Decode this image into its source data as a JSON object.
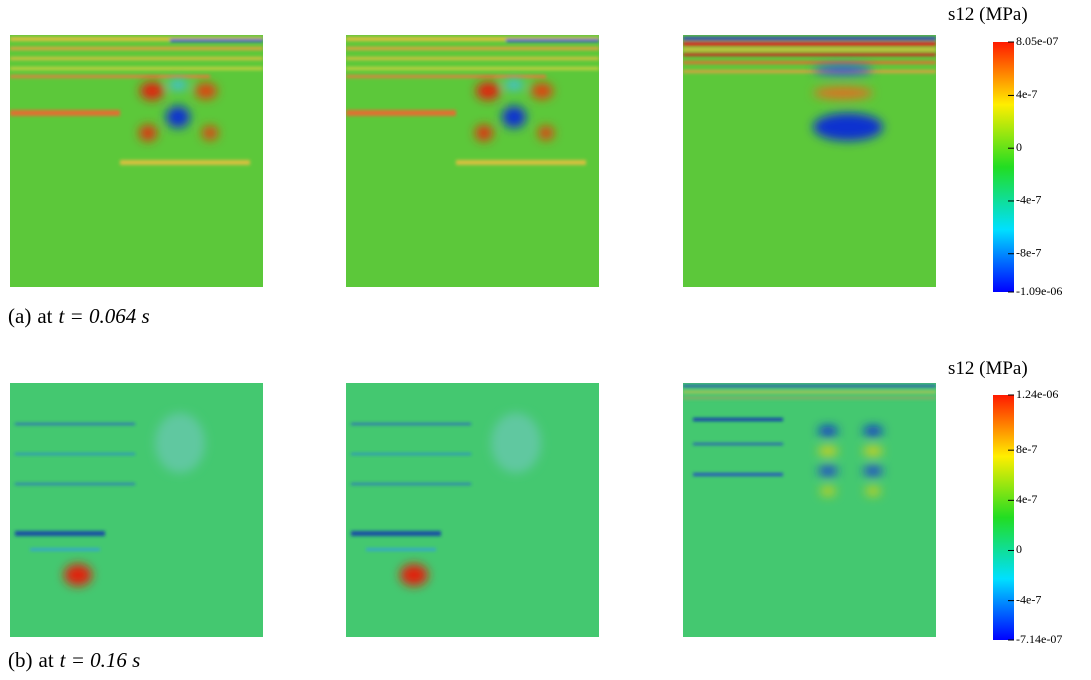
{
  "figure": {
    "panels": [
      {
        "caption": {
          "label": "(a)",
          "text": "at",
          "math": "t = 0.064 s"
        },
        "colorbar": {
          "title": "s12 (MPa)",
          "ticks": [
            {
              "value": 8.05e-07,
              "label": "8.05e-07"
            },
            {
              "value": 4e-07,
              "label": "4e-7"
            },
            {
              "value": 0,
              "label": "0"
            },
            {
              "value": -4e-07,
              "label": "-4e-7"
            },
            {
              "value": -8e-07,
              "label": "-8e-7"
            },
            {
              "value": -1.09e-06,
              "label": "-1.09e-06"
            }
          ]
        }
      },
      {
        "caption": {
          "label": "(b)",
          "text": "at",
          "math": "t = 0.16 s"
        },
        "colorbar": {
          "title": "s12 (MPa)",
          "ticks": [
            {
              "value": 1.24e-06,
              "label": "1.24e-06"
            },
            {
              "value": 8e-07,
              "label": "8e-7"
            },
            {
              "value": 4e-07,
              "label": "4e-7"
            },
            {
              "value": 0,
              "label": "0"
            },
            {
              "value": -4e-07,
              "label": "-4e-7"
            },
            {
              "value": -7.14e-07,
              "label": "-7.14e-07"
            }
          ]
        }
      }
    ]
  }
}
